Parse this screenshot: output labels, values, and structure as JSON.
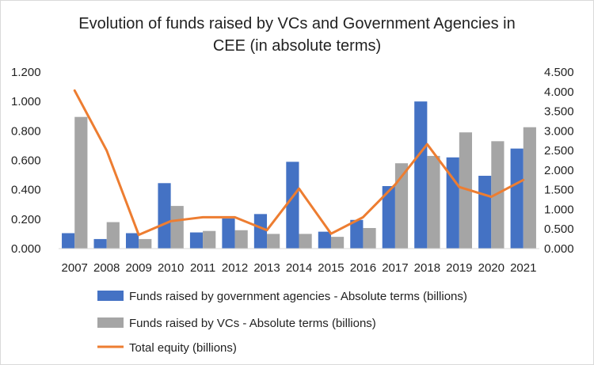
{
  "chart_data": {
    "type": "bar",
    "title_lines": [
      "Evolution of funds raised by VCs and Government Agencies in",
      "CEE (in absolute terms)"
    ],
    "categories": [
      "2007",
      "2008",
      "2009",
      "2010",
      "2011",
      "2012",
      "2013",
      "2014",
      "2015",
      "2016",
      "2017",
      "2018",
      "2019",
      "2020",
      "2021"
    ],
    "series": [
      {
        "name": "Funds raised by government agencies - Absolute terms (billions)",
        "kind": "bar",
        "axis": "left",
        "color": "#4472c4",
        "values": [
          0.105,
          0.065,
          0.105,
          0.445,
          0.11,
          0.205,
          0.235,
          0.59,
          0.115,
          0.195,
          0.425,
          1.0,
          0.62,
          0.495,
          0.68
        ]
      },
      {
        "name": "Funds raised by VCs - Absolute terms (billions)",
        "kind": "bar",
        "axis": "left",
        "color": "#a5a5a5",
        "values": [
          0.895,
          0.18,
          0.065,
          0.29,
          0.12,
          0.125,
          0.1,
          0.1,
          0.08,
          0.14,
          0.58,
          0.63,
          0.79,
          0.73,
          0.825
        ]
      },
      {
        "name": "Total equity (billions)",
        "kind": "line",
        "axis": "right",
        "color": "#ed7d31",
        "values": [
          4.03,
          2.5,
          0.35,
          0.7,
          0.8,
          0.8,
          0.47,
          1.53,
          0.38,
          0.8,
          1.63,
          2.66,
          1.57,
          1.32,
          1.75
        ]
      }
    ],
    "y_left": {
      "min": 0,
      "max": 1.2,
      "step": 0.2,
      "tick_labels": [
        "0.000",
        "0.200",
        "0.400",
        "0.600",
        "0.800",
        "1.000",
        "1.200"
      ]
    },
    "y_right": {
      "min": 0,
      "max": 4.5,
      "step": 0.5,
      "tick_labels": [
        "0.000",
        "0.500",
        "1.000",
        "1.500",
        "2.000",
        "2.500",
        "3.000",
        "3.500",
        "4.000",
        "4.500"
      ]
    },
    "grid": false,
    "legend_position": "bottom"
  }
}
